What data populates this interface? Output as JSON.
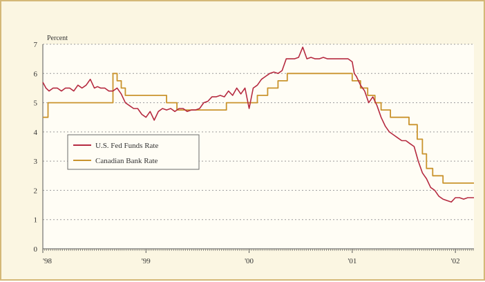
{
  "chart_data": {
    "type": "line",
    "ylabel": "Percent",
    "ylim": [
      0,
      7
    ],
    "y_ticks": [
      0,
      1,
      2,
      3,
      4,
      5,
      6,
      7
    ],
    "xlim": [
      1998.0,
      2002.18
    ],
    "x_ticks": [
      {
        "value": 1998.0,
        "label": "'98"
      },
      {
        "value": 1999.0,
        "label": "'99"
      },
      {
        "value": 2000.0,
        "label": "'00"
      },
      {
        "value": 2001.0,
        "label": "'01"
      },
      {
        "value": 2002.0,
        "label": "'02"
      }
    ],
    "grid": true,
    "legend_position": "left",
    "series": [
      {
        "name": "U.S. Fed Funds Rate",
        "color": "#b5293f",
        "x": [
          1998.0,
          1998.03,
          1998.06,
          1998.1,
          1998.14,
          1998.18,
          1998.22,
          1998.26,
          1998.3,
          1998.34,
          1998.38,
          1998.42,
          1998.46,
          1998.5,
          1998.53,
          1998.56,
          1998.6,
          1998.64,
          1998.68,
          1998.72,
          1998.76,
          1998.8,
          1998.84,
          1998.88,
          1998.92,
          1998.96,
          1999.0,
          1999.04,
          1999.08,
          1999.12,
          1999.16,
          1999.2,
          1999.24,
          1999.28,
          1999.32,
          1999.36,
          1999.4,
          1999.44,
          1999.48,
          1999.52,
          1999.56,
          1999.6,
          1999.64,
          1999.68,
          1999.72,
          1999.76,
          1999.8,
          1999.84,
          1999.88,
          1999.92,
          1999.96,
          2000.0,
          2000.04,
          2000.08,
          2000.12,
          2000.16,
          2000.2,
          2000.24,
          2000.28,
          2000.32,
          2000.36,
          2000.4,
          2000.44,
          2000.48,
          2000.52,
          2000.56,
          2000.6,
          2000.64,
          2000.68,
          2000.72,
          2000.76,
          2000.8,
          2000.84,
          2000.88,
          2000.92,
          2000.96,
          2001.0,
          2001.02,
          2001.04,
          2001.08,
          2001.12,
          2001.16,
          2001.2,
          2001.24,
          2001.28,
          2001.32,
          2001.36,
          2001.4,
          2001.44,
          2001.48,
          2001.52,
          2001.56,
          2001.6,
          2001.64,
          2001.68,
          2001.7,
          2001.72,
          2001.76,
          2001.8,
          2001.84,
          2001.88,
          2001.92,
          2001.96,
          2002.0,
          2002.04,
          2002.08,
          2002.12,
          2002.18
        ],
        "y": [
          5.7,
          5.5,
          5.4,
          5.5,
          5.5,
          5.4,
          5.5,
          5.5,
          5.4,
          5.6,
          5.5,
          5.6,
          5.8,
          5.5,
          5.55,
          5.5,
          5.5,
          5.4,
          5.4,
          5.5,
          5.3,
          5.0,
          4.9,
          4.8,
          4.8,
          4.6,
          4.5,
          4.7,
          4.4,
          4.7,
          4.8,
          4.75,
          4.8,
          4.7,
          4.8,
          4.8,
          4.7,
          4.75,
          4.75,
          4.8,
          5.0,
          5.05,
          5.2,
          5.2,
          5.25,
          5.2,
          5.4,
          5.25,
          5.5,
          5.3,
          5.5,
          4.8,
          5.5,
          5.6,
          5.8,
          5.9,
          6.0,
          6.05,
          6.0,
          6.1,
          6.5,
          6.5,
          6.5,
          6.55,
          6.9,
          6.5,
          6.55,
          6.5,
          6.5,
          6.55,
          6.5,
          6.5,
          6.5,
          6.5,
          6.5,
          6.5,
          6.4,
          6.0,
          5.9,
          5.6,
          5.4,
          5.0,
          5.2,
          4.9,
          4.5,
          4.2,
          4.0,
          3.9,
          3.8,
          3.7,
          3.7,
          3.6,
          3.5,
          3.0,
          2.6,
          2.5,
          2.4,
          2.1,
          2.0,
          1.8,
          1.7,
          1.65,
          1.6,
          1.75,
          1.75,
          1.7,
          1.75,
          1.75
        ]
      },
      {
        "name": "Canadian Bank Rate",
        "color": "#c9932c",
        "x": [
          1998.0,
          1998.05,
          1998.05,
          1998.08,
          1998.08,
          1998.68,
          1998.68,
          1998.72,
          1998.72,
          1998.76,
          1998.76,
          1998.8,
          1998.8,
          1998.86,
          1998.86,
          1999.2,
          1999.2,
          1999.3,
          1999.3,
          1999.78,
          1999.78,
          2000.08,
          2000.08,
          2000.18,
          2000.18,
          2000.28,
          2000.28,
          2000.37,
          2000.37,
          2001.0,
          2001.0,
          2001.08,
          2001.08,
          2001.15,
          2001.15,
          2001.22,
          2001.22,
          2001.28,
          2001.28,
          2001.37,
          2001.37,
          2001.55,
          2001.55,
          2001.63,
          2001.63,
          2001.68,
          2001.68,
          2001.72,
          2001.72,
          2001.78,
          2001.78,
          2001.88,
          2001.88,
          2002.04,
          2002.04,
          2002.18
        ],
        "y": [
          4.5,
          4.5,
          5.0,
          5.0,
          5.0,
          5.0,
          6.0,
          6.0,
          5.75,
          5.75,
          5.5,
          5.5,
          5.25,
          5.25,
          5.25,
          5.25,
          5.0,
          5.0,
          4.75,
          4.75,
          5.0,
          5.0,
          5.25,
          5.25,
          5.5,
          5.5,
          5.75,
          5.75,
          6.0,
          6.0,
          5.75,
          5.75,
          5.5,
          5.5,
          5.25,
          5.25,
          5.0,
          5.0,
          4.75,
          4.75,
          4.5,
          4.5,
          4.25,
          4.25,
          3.75,
          3.75,
          3.25,
          3.25,
          2.75,
          2.75,
          2.5,
          2.5,
          2.25,
          2.25,
          2.25,
          2.25
        ]
      }
    ]
  }
}
